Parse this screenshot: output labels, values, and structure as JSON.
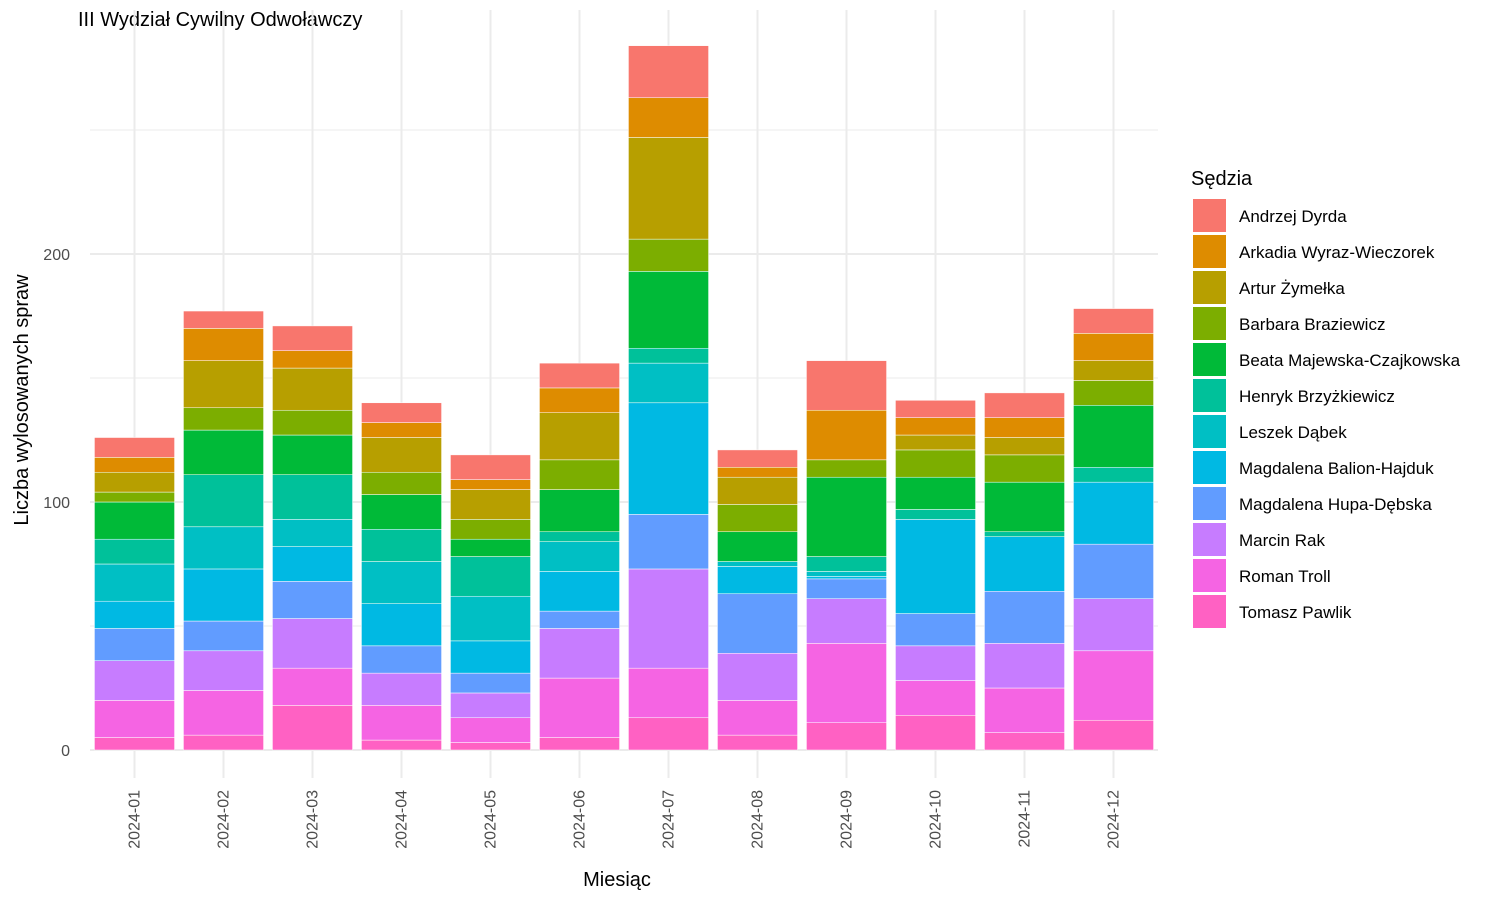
{
  "chart_data": {
    "type": "bar",
    "stacked": true,
    "title": "III Wydział Cywilny Odwoławczy",
    "xlabel": "Miesiąc",
    "ylabel": "Liczba wylosowanych spraw",
    "ylim": [
      0,
      300
    ],
    "yticks": [
      0,
      100,
      200
    ],
    "grid": true,
    "legend_title": "Sędzia",
    "legend_position": "right",
    "categories": [
      "2024-01",
      "2024-02",
      "2024-03",
      "2024-04",
      "2024-05",
      "2024-06",
      "2024-07",
      "2024-08",
      "2024-09",
      "2024-10",
      "2024-11",
      "2024-12"
    ],
    "series": [
      {
        "name": "Tomasz Pawlik",
        "color": "#FF61C3",
        "values": [
          5,
          6,
          18,
          4,
          3,
          5,
          13,
          6,
          11,
          14,
          7,
          12
        ]
      },
      {
        "name": "Roman Troll",
        "color": "#F564E3",
        "values": [
          15,
          18,
          15,
          14,
          10,
          24,
          20,
          14,
          32,
          14,
          18,
          28
        ]
      },
      {
        "name": "Marcin Rak",
        "color": "#C77CFF",
        "values": [
          16,
          16,
          20,
          13,
          10,
          20,
          40,
          19,
          18,
          14,
          18,
          21
        ]
      },
      {
        "name": "Magdalena Hupa-Dębska",
        "color": "#619CFF",
        "values": [
          13,
          12,
          15,
          11,
          8,
          7,
          22,
          24,
          8,
          13,
          21,
          22
        ]
      },
      {
        "name": "Magdalena Balion-Hajduk",
        "color": "#00B9E3",
        "values": [
          11,
          21,
          14,
          17,
          13,
          16,
          45,
          11,
          1,
          38,
          22,
          25
        ]
      },
      {
        "name": "Leszek Dąbek",
        "color": "#00BFC4",
        "values": [
          15,
          17,
          11,
          17,
          18,
          12,
          16,
          2,
          2,
          0,
          0,
          0
        ]
      },
      {
        "name": "Henryk Brzyżkiewicz",
        "color": "#00C19A",
        "values": [
          10,
          21,
          18,
          13,
          16,
          4,
          6,
          0,
          6,
          4,
          2,
          6
        ]
      },
      {
        "name": "Beata Majewska-Czajkowska",
        "color": "#00BA38",
        "values": [
          15,
          18,
          16,
          14,
          7,
          17,
          31,
          12,
          32,
          13,
          20,
          25
        ]
      },
      {
        "name": "Barbara Braziewicz",
        "color": "#7CAE00",
        "values": [
          4,
          9,
          10,
          9,
          8,
          12,
          13,
          11,
          7,
          11,
          11,
          10
        ]
      },
      {
        "name": "Artur Żymełka",
        "color": "#B79F00",
        "values": [
          8,
          19,
          17,
          14,
          12,
          19,
          41,
          11,
          0,
          6,
          7,
          8
        ]
      },
      {
        "name": "Arkadia Wyraz-Wieczorek",
        "color": "#DE8C00",
        "values": [
          6,
          13,
          7,
          6,
          4,
          10,
          16,
          4,
          20,
          7,
          8,
          11
        ]
      },
      {
        "name": "Andrzej Dyrda",
        "color": "#F8766D",
        "values": [
          8,
          7,
          10,
          8,
          10,
          10,
          21,
          7,
          20,
          7,
          10,
          10
        ]
      }
    ]
  }
}
